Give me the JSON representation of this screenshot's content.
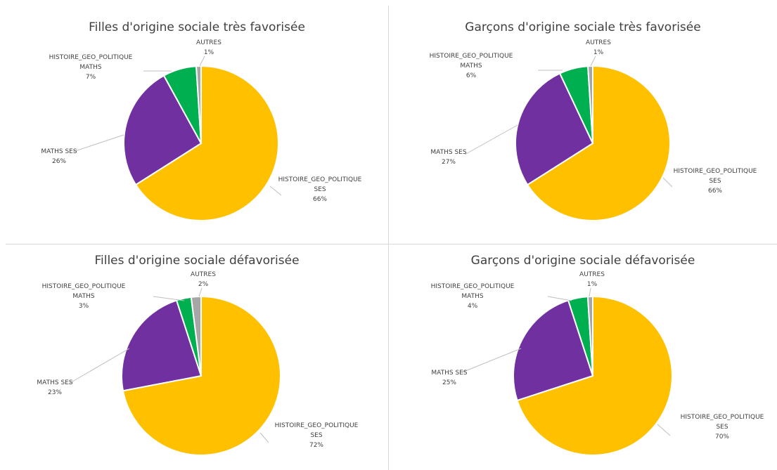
{
  "chart_data": [
    {
      "type": "pie",
      "title": "Filles d'origine sociale très favorisée",
      "slices": [
        {
          "name": "HISTOIRE_GEO_POLITIQUE|SES",
          "value": 66,
          "label": "66%",
          "color": "#FFC000"
        },
        {
          "name": "MATHS SES",
          "value": 26,
          "label": "26%",
          "color": "#7030A0"
        },
        {
          "name": "HISTOIRE_GEO_POLITIQUE|MATHS",
          "value": 7,
          "label": "7%",
          "color": "#00B050"
        },
        {
          "name": "AUTRES",
          "value": 1,
          "label": "1%",
          "color": "#A6A6A6"
        }
      ]
    },
    {
      "type": "pie",
      "title": "Garçons d'origine sociale très favorisée",
      "slices": [
        {
          "name": "HISTOIRE_GEO_POLITIQUE|SES",
          "value": 66,
          "label": "66%",
          "color": "#FFC000"
        },
        {
          "name": "MATHS SES",
          "value": 27,
          "label": "27%",
          "color": "#7030A0"
        },
        {
          "name": "HISTOIRE_GEO_POLITIQUE|MATHS",
          "value": 6,
          "label": "6%",
          "color": "#00B050"
        },
        {
          "name": "AUTRES",
          "value": 1,
          "label": "1%",
          "color": "#A6A6A6"
        }
      ]
    },
    {
      "type": "pie",
      "title": "Filles d'origine sociale défavorisée",
      "slices": [
        {
          "name": "HISTOIRE_GEO_POLITIQUE|SES",
          "value": 72,
          "label": "72%",
          "color": "#FFC000"
        },
        {
          "name": "MATHS SES",
          "value": 23,
          "label": "23%",
          "color": "#7030A0"
        },
        {
          "name": "HISTOIRE_GEO_POLITIQUE|MATHS",
          "value": 3,
          "label": "3%",
          "color": "#00B050"
        },
        {
          "name": "AUTRES",
          "value": 2,
          "label": "2%",
          "color": "#A6A6A6"
        }
      ]
    },
    {
      "type": "pie",
      "title": "Garçons d'origine sociale défavorisée",
      "slices": [
        {
          "name": "HISTOIRE_GEO_POLITIQUE|SES",
          "value": 70,
          "label": "70%",
          "color": "#FFC000"
        },
        {
          "name": "MATHS SES",
          "value": 25,
          "label": "25%",
          "color": "#7030A0"
        },
        {
          "name": "HISTOIRE_GEO_POLITIQUE|MATHS",
          "value": 4,
          "label": "4%",
          "color": "#00B050"
        },
        {
          "name": "AUTRES",
          "value": 1,
          "label": "1%",
          "color": "#A6A6A6"
        }
      ]
    }
  ]
}
